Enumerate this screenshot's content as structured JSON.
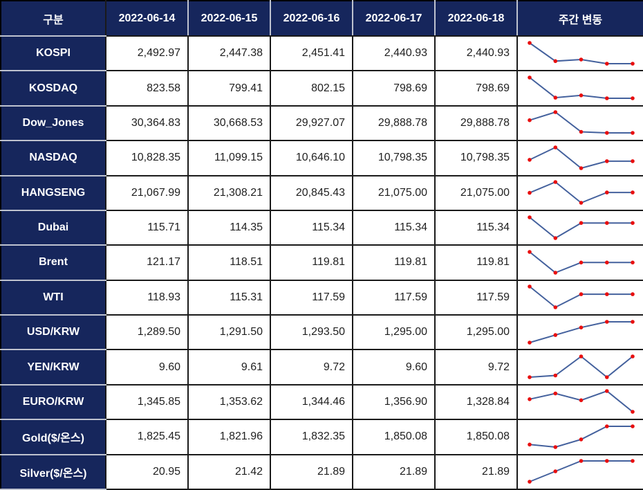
{
  "chart_data": {
    "type": "table",
    "columns": [
      "구분",
      "2022-06-14",
      "2022-06-15",
      "2022-06-16",
      "2022-06-17",
      "2022-06-18",
      "주간 변동"
    ],
    "number_format": "thousands-separator, 2 decimals, right-aligned",
    "rows": [
      {
        "label": "KOSPI",
        "values": [
          2492.97,
          2447.38,
          2451.41,
          2440.93,
          2440.93
        ]
      },
      {
        "label": "KOSDAQ",
        "values": [
          823.58,
          799.41,
          802.15,
          798.69,
          798.69
        ]
      },
      {
        "label": "Dow_Jones",
        "values": [
          30364.83,
          30668.53,
          29927.07,
          29888.78,
          29888.78
        ]
      },
      {
        "label": "NASDAQ",
        "values": [
          10828.35,
          11099.15,
          10646.1,
          10798.35,
          10798.35
        ]
      },
      {
        "label": "HANGSENG",
        "values": [
          21067.99,
          21308.21,
          20845.43,
          21075.0,
          21075.0
        ]
      },
      {
        "label": "Dubai",
        "values": [
          115.71,
          114.35,
          115.34,
          115.34,
          115.34
        ]
      },
      {
        "label": "Brent",
        "values": [
          121.17,
          118.51,
          119.81,
          119.81,
          119.81
        ]
      },
      {
        "label": "WTI",
        "values": [
          118.93,
          115.31,
          117.59,
          117.59,
          117.59
        ]
      },
      {
        "label": "USD/KRW",
        "values": [
          1289.5,
          1291.5,
          1293.5,
          1295.0,
          1295.0
        ]
      },
      {
        "label": "YEN/KRW",
        "values": [
          9.6,
          9.61,
          9.72,
          9.6,
          9.72
        ]
      },
      {
        "label": "EURO/KRW",
        "values": [
          1345.85,
          1353.62,
          1344.46,
          1356.9,
          1328.84
        ]
      },
      {
        "label": "Gold($/온스)",
        "values": [
          1825.45,
          1821.96,
          1832.35,
          1850.08,
          1850.08
        ]
      },
      {
        "label": "Silver($/온스)",
        "values": [
          20.95,
          21.42,
          21.89,
          21.89,
          21.89
        ]
      }
    ],
    "sparklines": {
      "type": "line",
      "x": [
        "2022-06-14",
        "2022-06-15",
        "2022-06-16",
        "2022-06-17",
        "2022-06-18"
      ],
      "note": "each row's weekly values drawn as a min-max normalized line with point markers",
      "legend": "none",
      "grid": "off"
    }
  },
  "colors": {
    "header_bg": "#16265C",
    "header_text": "#ffffff",
    "grid_dark": "#1a1a1a",
    "grid_light": "#bfc3cf",
    "value_text": "#1f1f1f",
    "sparkline_line": "#44619D",
    "sparkline_marker": "#E80F0F"
  }
}
